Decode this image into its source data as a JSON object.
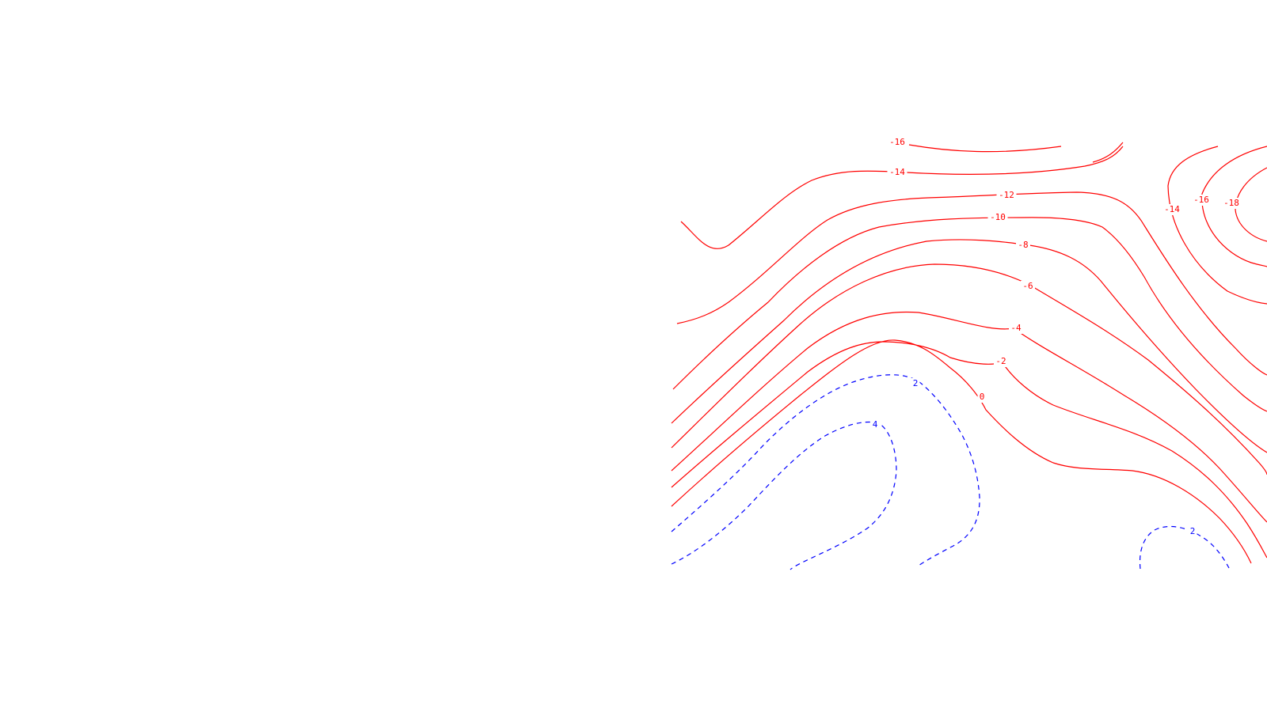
{
  "chart_data": {
    "type": "contour",
    "title": "",
    "xlabel": "",
    "ylabel": "",
    "grid": false,
    "legend": "none",
    "line_styles": {
      "negative": {
        "color": "#ff0000",
        "style": "solid"
      },
      "positive": {
        "color": "#0000ff",
        "style": "dashed"
      }
    },
    "contours": [
      {
        "id": "c-16",
        "level": -16,
        "label": "-16",
        "kind": "negative"
      },
      {
        "id": "c-14",
        "level": -14,
        "label": "-14",
        "kind": "negative"
      },
      {
        "id": "c-12",
        "level": -12,
        "label": "-12",
        "kind": "negative"
      },
      {
        "id": "c-10",
        "level": -10,
        "label": "-10",
        "kind": "negative"
      },
      {
        "id": "c-8",
        "level": -8,
        "label": "-8",
        "kind": "negative"
      },
      {
        "id": "c-6",
        "level": -6,
        "label": "-6",
        "kind": "negative"
      },
      {
        "id": "c-4",
        "level": -4,
        "label": "-4",
        "kind": "negative"
      },
      {
        "id": "c-2",
        "level": -2,
        "label": "-2",
        "kind": "negative"
      },
      {
        "id": "c0",
        "level": 0,
        "label": "0",
        "kind": "negative"
      },
      {
        "id": "c2",
        "level": 2,
        "label": "2",
        "kind": "positive"
      },
      {
        "id": "c4",
        "level": 4,
        "label": "4",
        "kind": "positive"
      },
      {
        "id": "c2b",
        "level": 2,
        "label": "2",
        "kind": "positive"
      },
      {
        "id": "e-14",
        "level": -14,
        "label": "-14",
        "kind": "negative"
      },
      {
        "id": "e-16",
        "level": -16,
        "label": "-16",
        "kind": "negative"
      },
      {
        "id": "e-18",
        "level": -18,
        "label": "-18",
        "kind": "negative"
      }
    ]
  }
}
